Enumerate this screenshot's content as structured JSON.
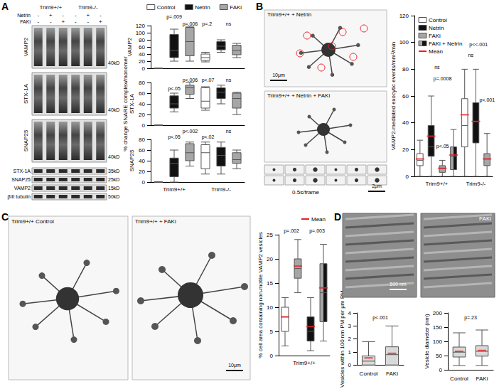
{
  "figure": {
    "panel_labels": [
      "A",
      "B",
      "C",
      "D"
    ],
    "blot": {
      "genotypes": [
        "Trim9+/+",
        "Trim9-/-"
      ],
      "treatments": [
        {
          "label": "Netrin",
          "signs": [
            "-",
            "+",
            "-",
            "-",
            "+",
            "-"
          ]
        },
        {
          "label": "FAKi",
          "signs": [
            "-",
            "-",
            "+",
            "-",
            "-",
            "+"
          ]
        }
      ],
      "complex_blots": [
        {
          "label": "VAMP2",
          "marker": "40kD"
        },
        {
          "label": "STX-1A",
          "marker": "40kD"
        },
        {
          "label": "SNAP25",
          "marker": "40kD"
        }
      ],
      "monomer_bands": [
        {
          "label": "STX-1A",
          "marker": "35kD"
        },
        {
          "label": "SNAP25",
          "marker": "25kD"
        },
        {
          "label": "VAMP2",
          "marker": "15kD"
        },
        {
          "label": "βIII tubulin",
          "marker": "50kD"
        }
      ]
    },
    "shared_ylabel_A": "% change SNARE complex/monomer",
    "images": [
      {
        "label": "Trim9+/+ + Netrin",
        "scale_bar": "10μm"
      },
      {
        "label": "Trim9+/+ + Netrin + FAKi"
      },
      {
        "label": "0.5s/frame",
        "scale_bar": "2μm"
      },
      {
        "label": "Trim9+/+ Control"
      },
      {
        "label": "Trim9+/+ + FAKi",
        "scale_bar": "10μm"
      },
      {
        "scale_bar": "500 nm"
      },
      {
        "label": "FAKi"
      }
    ]
  },
  "chart_data": [
    {
      "type": "boxplot",
      "ylabel": "VAMP2",
      "ylim": [
        0,
        120
      ],
      "yticks": [
        0,
        20,
        40,
        60,
        80,
        100,
        120
      ],
      "categories": [
        null,
        null,
        null,
        null,
        null,
        null
      ],
      "tick_labels": "y",
      "legend": "top",
      "series": [
        {
          "name": "Control",
          "color": "#ffffff",
          "values": [
            [
              0,
              0,
              0,
              0,
              0
            ],
            null,
            null,
            [
              18,
              22,
              30,
              40,
              45
            ],
            null,
            null
          ]
        },
        {
          "name": "Netrin",
          "color": "#111111",
          "values": [
            null,
            [
              20,
              30,
              50,
              95,
              110
            ],
            null,
            null,
            [
              45,
              52,
              62,
              75,
              80
            ],
            null
          ]
        },
        {
          "name": "FAKi",
          "color": "#a6a6a6",
          "values": [
            null,
            null,
            [
              20,
              35,
              75,
              115,
              118
            ],
            null,
            null,
            [
              30,
              38,
              50,
              65,
              70
            ]
          ]
        }
      ],
      "annotations": [
        "p=.009",
        "p=.006",
        "p=.2",
        "ns"
      ]
    },
    {
      "type": "boxplot",
      "ylabel": "STX-1A",
      "ylim": [
        0,
        80
      ],
      "yticks": [
        0,
        20,
        40,
        60,
        80
      ],
      "categories": [
        null,
        null,
        null,
        null,
        null,
        null
      ],
      "tick_labels": "y",
      "series": [
        {
          "color": "#ffffff",
          "values": [
            [
              0,
              0,
              0,
              0,
              0
            ],
            null,
            null,
            [
              28,
              32,
              45,
              70,
              72
            ],
            null,
            null
          ]
        },
        {
          "color": "#111111",
          "values": [
            null,
            [
              25,
              32,
              40,
              55,
              60
            ],
            null,
            null,
            [
              40,
              50,
              62,
              70,
              75
            ],
            null
          ]
        },
        {
          "color": "#a6a6a6",
          "values": [
            null,
            null,
            [
              50,
              58,
              70,
              75,
              80
            ],
            null,
            null,
            [
              20,
              32,
              50,
              60,
              62
            ]
          ]
        }
      ],
      "annotations": [
        "p<.05",
        "p<.006",
        "p<.07",
        "ns"
      ]
    },
    {
      "type": "boxplot",
      "ylabel": "SNAP25",
      "ylim": [
        0,
        80
      ],
      "yticks": [
        0,
        20,
        40,
        60,
        80
      ],
      "categories": [
        null,
        null,
        null,
        null,
        null,
        null
      ],
      "tick_labels": "y",
      "groups": [
        {
          "label": "Trim9+/+",
          "from": 0,
          "to": 2
        },
        {
          "label": "Trim9-/-",
          "from": 3,
          "to": 5
        }
      ],
      "series": [
        {
          "color": "#ffffff",
          "values": [
            [
              0,
              0,
              0,
              0,
              0
            ],
            null,
            null,
            [
              15,
              25,
              55,
              70,
              75
            ],
            null,
            null
          ]
        },
        {
          "color": "#111111",
          "values": [
            null,
            [
              0,
              10,
              35,
              45,
              60
            ],
            null,
            null,
            [
              15,
              30,
              50,
              65,
              75
            ],
            null
          ]
        },
        {
          "color": "#a6a6a6",
          "values": [
            null,
            null,
            [
              30,
              40,
              55,
              72,
              75
            ],
            null,
            null,
            [
              25,
              35,
              42,
              55,
              60
            ]
          ]
        }
      ],
      "annotations": [
        "p<.05",
        "p<.002",
        "p<.02",
        "ns"
      ]
    },
    {
      "type": "boxplot",
      "ylabel": "VAMP2-mediated exocytic events/mm²/min",
      "ylim": [
        0,
        120
      ],
      "yticks": [
        0,
        20,
        40,
        60,
        80,
        100,
        120
      ],
      "categories": [
        null,
        null,
        null,
        null,
        null,
        null,
        null
      ],
      "tick_labels": "y",
      "legend": "top-left",
      "groups": [
        {
          "label": "Trim9+/+",
          "from": 0,
          "to": 3
        },
        {
          "label": "Trim9-/-",
          "from": 4,
          "to": 6
        }
      ],
      "series": [
        {
          "name": "Control",
          "color": "#ffffff",
          "values": [
            [
              0,
              8,
              12,
              17,
              27
            ],
            null,
            null,
            null,
            [
              0,
              22,
              38,
              58,
              80
            ],
            null,
            null
          ]
        },
        {
          "name": "Netrin",
          "color": "#111111",
          "values": [
            null,
            [
              0,
              15,
              22,
              38,
              60
            ],
            null,
            null,
            null,
            [
              0,
              25,
              41,
              55,
              80
            ],
            null
          ]
        },
        {
          "name": "FAKi",
          "color": "#a6a6a6",
          "values": [
            null,
            null,
            [
              0,
              3,
              6,
              8,
              12
            ],
            null,
            null,
            null,
            [
              0,
              8,
              13,
              17,
              32
            ]
          ]
        },
        {
          "name": "FAKi + Netrin",
          "color": [
            "#a6a6a6",
            "#111111"
          ],
          "values": [
            null,
            null,
            null,
            [
              0,
              5,
              15,
              22,
              35
            ],
            null,
            null,
            null
          ]
        },
        {
          "name": "Mean",
          "type": "scatter",
          "marker": "line",
          "color": "#e8202a",
          "values": [
            13,
            30,
            6,
            16,
            46,
            41,
            13
          ]
        }
      ],
      "annotations": [
        "ns",
        "p=.0008",
        "p<.05",
        "ns",
        "p<<.001",
        "p<.001"
      ]
    },
    {
      "type": "boxplot",
      "ylabel": "% cell area containing non-motile VAMP2 vesicles",
      "ylim": [
        0,
        25
      ],
      "yticks": [
        0,
        5,
        10,
        15,
        20,
        25
      ],
      "categories": [
        null,
        null,
        null,
        null
      ],
      "tick_labels": "y",
      "legend": "top-right",
      "groups": [
        {
          "label": "Trim9+/+",
          "from": 0,
          "to": 3
        }
      ],
      "series": [
        {
          "color": "#ffffff",
          "values": [
            [
              2,
              5,
              8,
              10,
              12
            ],
            null,
            null,
            null
          ]
        },
        {
          "color": "#a6a6a6",
          "values": [
            null,
            [
              13,
              16,
              18,
              20,
              24
            ],
            null,
            null
          ]
        },
        {
          "color": "#111111",
          "values": [
            null,
            null,
            [
              1,
              3,
              5,
              8,
              12
            ],
            null
          ]
        },
        {
          "color": [
            "#a6a6a6",
            "#111111"
          ],
          "values": [
            null,
            null,
            null,
            [
              3,
              7,
              13,
              19,
              23
            ]
          ]
        },
        {
          "name": "Mean",
          "type": "scatter",
          "marker": "line",
          "color": "#e8202a",
          "values": [
            8,
            18.5,
            6,
            14
          ]
        }
      ],
      "annotations": [
        "p=.002",
        "p=.003"
      ]
    },
    {
      "type": "boxplot",
      "ylabel": "Vesicles within 100 nm PM per μm PM",
      "ylim": [
        0,
        4
      ],
      "yticks": [
        0,
        1,
        2,
        3,
        4
      ],
      "categories": [
        "Control",
        "FAKi"
      ],
      "series": [
        {
          "color": "#d9d9d9",
          "values": [
            [
              0,
              0,
              0.3,
              0.7,
              1.8
            ],
            [
              0,
              0,
              0.8,
              1.4,
              3.0
            ]
          ]
        },
        {
          "type": "scatter",
          "marker": "line",
          "color": "#e8202a",
          "values": [
            0.55,
            0.9
          ]
        }
      ],
      "annotations": [
        "p<.001"
      ]
    },
    {
      "type": "boxplot",
      "ylabel": "Vesicle diameter (nm)",
      "ylim": [
        0,
        200
      ],
      "yticks": [
        0,
        50,
        100,
        150,
        200
      ],
      "categories": [
        "Control",
        "FAKi"
      ],
      "series": [
        {
          "color": "#d9d9d9",
          "values": [
            [
              15,
              45,
              62,
              80,
              130
            ],
            [
              15,
              48,
              65,
              85,
              140
            ]
          ]
        },
        {
          "type": "scatter",
          "marker": "line",
          "color": "#e8202a",
          "values": [
            65,
            68
          ]
        }
      ],
      "annotations": [
        "p=.23"
      ]
    }
  ]
}
